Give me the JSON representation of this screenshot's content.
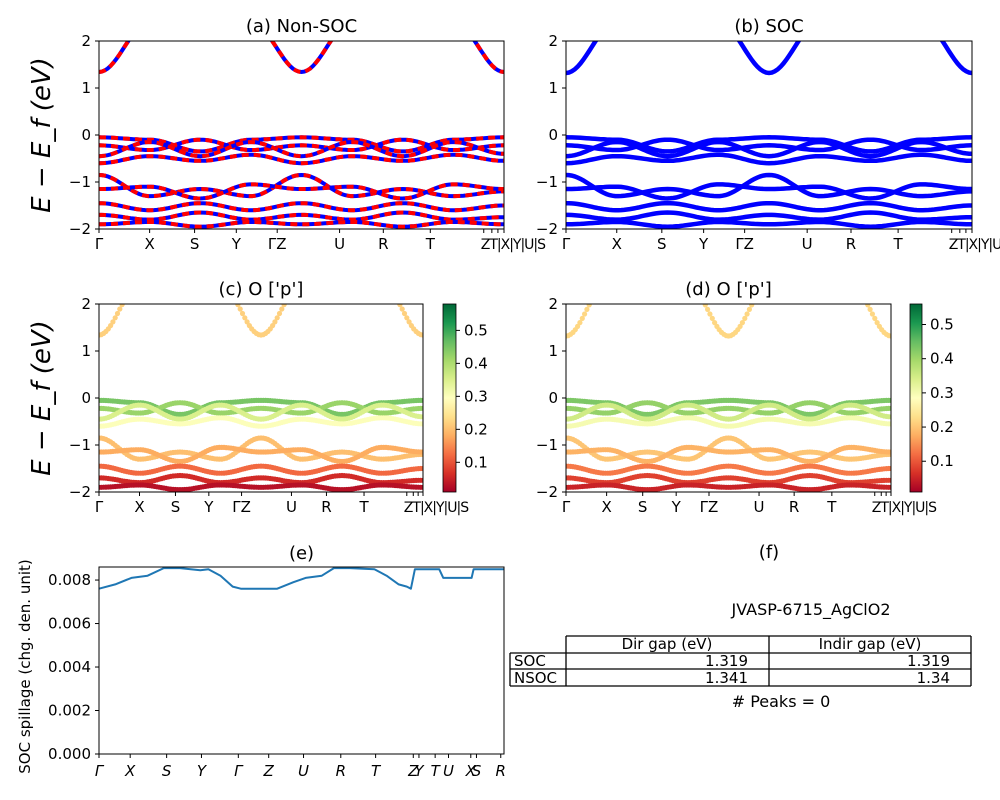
{
  "colors": {
    "nonsoc_band_a": "#ff0000",
    "nonsoc_band_b": "#0000ff",
    "soc_band": "#0000ff",
    "spillage_line": "#1f77b4",
    "colormap": [
      "#a50026",
      "#d73027",
      "#f46d43",
      "#fdae61",
      "#fee08b",
      "#ffffbf",
      "#d9ef8b",
      "#a6d96a",
      "#66bd63",
      "#1a9850",
      "#006837"
    ]
  },
  "chart_data": [
    {
      "panel": "a",
      "type": "line",
      "title": "(a) Non-SOC",
      "ylabel": "E − E_f (eV)",
      "ylim": [
        -2,
        2
      ],
      "yticks": [
        "2",
        "1",
        "0",
        "−1",
        "−2"
      ],
      "xticks": [
        "Γ",
        "X",
        "S",
        "Y",
        "ΓZ",
        "U",
        "R",
        "T",
        "ZT|X|Y|U|S"
      ],
      "xtick_positions": [
        0,
        0.125,
        0.236,
        0.339,
        0.44,
        0.594,
        0.702,
        0.818,
        0.95,
        0.97,
        0.985,
        1.0
      ],
      "series": [
        {
          "values": [
            1.34,
            2.4,
            2.4,
            2.4,
            1.34,
            2.4,
            2.4,
            2.4,
            1.34
          ]
        },
        {
          "values": [
            -0.05,
            -0.1,
            -0.35,
            -0.1,
            -0.05,
            -0.1,
            -0.35,
            -0.1,
            -0.05
          ]
        },
        {
          "values": [
            -0.22,
            -0.32,
            -0.1,
            -0.32,
            -0.22,
            -0.32,
            -0.1,
            -0.32,
            -0.22
          ]
        },
        {
          "values": [
            -0.45,
            -0.15,
            -0.45,
            -0.15,
            -0.45,
            -0.15,
            -0.45,
            -0.15,
            -0.4
          ]
        },
        {
          "values": [
            -0.6,
            -0.45,
            -0.55,
            -0.42,
            -0.6,
            -0.45,
            -0.55,
            -0.42,
            -0.55
          ]
        },
        {
          "values": [
            -0.85,
            -1.3,
            -1.15,
            -1.3,
            -0.85,
            -1.3,
            -1.15,
            -1.3,
            -1.2
          ]
        },
        {
          "values": [
            -1.15,
            -1.1,
            -1.35,
            -1.05,
            -1.15,
            -1.1,
            -1.35,
            -1.05,
            -1.15
          ]
        },
        {
          "values": [
            -1.45,
            -1.6,
            -1.45,
            -1.6,
            -1.45,
            -1.6,
            -1.45,
            -1.6,
            -1.5
          ]
        },
        {
          "values": [
            -1.7,
            -1.8,
            -1.65,
            -1.8,
            -1.7,
            -1.8,
            -1.65,
            -1.8,
            -1.75
          ]
        },
        {
          "values": [
            -1.9,
            -1.85,
            -1.95,
            -1.85,
            -1.9,
            -1.85,
            -1.95,
            -1.85,
            -1.9
          ]
        }
      ]
    },
    {
      "panel": "b",
      "type": "line",
      "title": "(b) SOC",
      "ylabel": "",
      "ylim": [
        -2,
        2
      ],
      "yticks": [
        "2",
        "1",
        "0",
        "−1",
        "−2"
      ],
      "xticks": [
        "Γ",
        "X",
        "S",
        "Y",
        "ΓZ",
        "U",
        "R",
        "T",
        "ZT|X|Y|U|S"
      ],
      "xtick_positions": [
        0,
        0.125,
        0.236,
        0.339,
        0.44,
        0.594,
        0.702,
        0.818,
        0.95,
        0.97,
        0.985,
        1.0
      ],
      "series": [
        {
          "values": [
            1.32,
            2.4,
            2.4,
            2.4,
            1.32,
            2.4,
            2.4,
            2.4,
            1.32
          ]
        },
        {
          "values": [
            -0.05,
            -0.1,
            -0.35,
            -0.1,
            -0.05,
            -0.1,
            -0.35,
            -0.1,
            -0.05
          ]
        },
        {
          "values": [
            -0.22,
            -0.32,
            -0.1,
            -0.32,
            -0.22,
            -0.32,
            -0.1,
            -0.32,
            -0.22
          ]
        },
        {
          "values": [
            -0.45,
            -0.15,
            -0.45,
            -0.15,
            -0.45,
            -0.15,
            -0.45,
            -0.15,
            -0.4
          ]
        },
        {
          "values": [
            -0.6,
            -0.45,
            -0.55,
            -0.42,
            -0.6,
            -0.45,
            -0.55,
            -0.42,
            -0.55
          ]
        },
        {
          "values": [
            -0.85,
            -1.3,
            -1.15,
            -1.3,
            -0.85,
            -1.3,
            -1.15,
            -1.3,
            -1.2
          ]
        },
        {
          "values": [
            -1.15,
            -1.1,
            -1.35,
            -1.05,
            -1.15,
            -1.1,
            -1.35,
            -1.05,
            -1.15
          ]
        },
        {
          "values": [
            -1.45,
            -1.6,
            -1.45,
            -1.6,
            -1.45,
            -1.6,
            -1.45,
            -1.6,
            -1.5
          ]
        },
        {
          "values": [
            -1.7,
            -1.8,
            -1.65,
            -1.8,
            -1.7,
            -1.8,
            -1.65,
            -1.8,
            -1.75
          ]
        },
        {
          "values": [
            -1.9,
            -1.85,
            -1.95,
            -1.85,
            -1.9,
            -1.85,
            -1.95,
            -1.85,
            -1.9
          ]
        }
      ]
    },
    {
      "panel": "c",
      "type": "scatter",
      "title": "(c)  O ['p']",
      "ylabel": "E − E_f (eV)",
      "ylim": [
        -2,
        2
      ],
      "yticks": [
        "2",
        "1",
        "0",
        "−1",
        "−2"
      ],
      "xticks": [
        "Γ",
        "X",
        "S",
        "Y",
        "ΓZ",
        "U",
        "R",
        "T",
        "ZT|X|Y|U|S"
      ],
      "xtick_positions": [
        0,
        0.125,
        0.236,
        0.339,
        0.44,
        0.594,
        0.702,
        0.818,
        0.95,
        0.97,
        0.985,
        1.0
      ],
      "colorbar": {
        "range": [
          0.01,
          0.58
        ],
        "ticks": [
          "0.5",
          "0.4",
          "0.3",
          "0.2",
          "0.1"
        ],
        "tick_values": [
          0.5,
          0.4,
          0.3,
          0.2,
          0.1
        ]
      },
      "band_weights": [
        0.22,
        0.45,
        0.42,
        0.35,
        0.3,
        0.2,
        0.18,
        0.12,
        0.06,
        0.03
      ],
      "series": [
        {
          "values": [
            1.34,
            2.4,
            2.4,
            2.4,
            1.34,
            2.4,
            2.4,
            2.4,
            1.34
          ]
        },
        {
          "values": [
            -0.05,
            -0.1,
            -0.35,
            -0.1,
            -0.05,
            -0.1,
            -0.35,
            -0.1,
            -0.05
          ]
        },
        {
          "values": [
            -0.22,
            -0.32,
            -0.1,
            -0.32,
            -0.22,
            -0.32,
            -0.1,
            -0.32,
            -0.22
          ]
        },
        {
          "values": [
            -0.45,
            -0.15,
            -0.45,
            -0.15,
            -0.45,
            -0.15,
            -0.45,
            -0.15,
            -0.4
          ]
        },
        {
          "values": [
            -0.6,
            -0.45,
            -0.55,
            -0.42,
            -0.6,
            -0.45,
            -0.55,
            -0.42,
            -0.55
          ]
        },
        {
          "values": [
            -0.85,
            -1.3,
            -1.15,
            -1.3,
            -0.85,
            -1.3,
            -1.15,
            -1.3,
            -1.2
          ]
        },
        {
          "values": [
            -1.15,
            -1.1,
            -1.35,
            -1.05,
            -1.15,
            -1.1,
            -1.35,
            -1.05,
            -1.15
          ]
        },
        {
          "values": [
            -1.45,
            -1.6,
            -1.45,
            -1.6,
            -1.45,
            -1.6,
            -1.45,
            -1.6,
            -1.5
          ]
        },
        {
          "values": [
            -1.7,
            -1.8,
            -1.65,
            -1.8,
            -1.7,
            -1.8,
            -1.65,
            -1.8,
            -1.75
          ]
        },
        {
          "values": [
            -1.9,
            -1.85,
            -1.95,
            -1.85,
            -1.9,
            -1.85,
            -1.95,
            -1.85,
            -1.9
          ]
        }
      ]
    },
    {
      "panel": "d",
      "type": "scatter",
      "title": "(d) O ['p']",
      "ylabel": "",
      "ylim": [
        -2,
        2
      ],
      "yticks": [
        "2",
        "1",
        "0",
        "−1",
        "−2"
      ],
      "xticks": [
        "Γ",
        "X",
        "S",
        "Y",
        "ΓZ",
        "U",
        "R",
        "T",
        "ZT|X|Y|U|S"
      ],
      "xtick_positions": [
        0,
        0.125,
        0.236,
        0.339,
        0.44,
        0.594,
        0.702,
        0.818,
        0.95,
        0.97,
        0.985,
        1.0
      ],
      "colorbar": {
        "range": [
          0.01,
          0.56
        ],
        "ticks": [
          "0.5",
          "0.4",
          "0.3",
          "0.2",
          "0.1"
        ],
        "tick_values": [
          0.5,
          0.4,
          0.3,
          0.2,
          0.1
        ]
      },
      "band_weights": [
        0.22,
        0.43,
        0.41,
        0.35,
        0.3,
        0.2,
        0.18,
        0.13,
        0.08,
        0.05
      ],
      "series": [
        {
          "values": [
            1.32,
            2.4,
            2.4,
            2.4,
            1.32,
            2.4,
            2.4,
            2.4,
            1.32
          ]
        },
        {
          "values": [
            -0.05,
            -0.1,
            -0.35,
            -0.1,
            -0.05,
            -0.1,
            -0.35,
            -0.1,
            -0.05
          ]
        },
        {
          "values": [
            -0.22,
            -0.32,
            -0.1,
            -0.32,
            -0.22,
            -0.32,
            -0.1,
            -0.32,
            -0.22
          ]
        },
        {
          "values": [
            -0.45,
            -0.15,
            -0.45,
            -0.15,
            -0.45,
            -0.15,
            -0.45,
            -0.15,
            -0.4
          ]
        },
        {
          "values": [
            -0.6,
            -0.45,
            -0.55,
            -0.42,
            -0.6,
            -0.45,
            -0.55,
            -0.42,
            -0.55
          ]
        },
        {
          "values": [
            -0.85,
            -1.3,
            -1.15,
            -1.3,
            -0.85,
            -1.3,
            -1.15,
            -1.3,
            -1.2
          ]
        },
        {
          "values": [
            -1.15,
            -1.1,
            -1.35,
            -1.05,
            -1.15,
            -1.1,
            -1.35,
            -1.05,
            -1.15
          ]
        },
        {
          "values": [
            -1.45,
            -1.6,
            -1.45,
            -1.6,
            -1.45,
            -1.6,
            -1.45,
            -1.6,
            -1.5
          ]
        },
        {
          "values": [
            -1.7,
            -1.8,
            -1.65,
            -1.8,
            -1.7,
            -1.8,
            -1.65,
            -1.8,
            -1.75
          ]
        },
        {
          "values": [
            -1.9,
            -1.85,
            -1.95,
            -1.85,
            -1.9,
            -1.85,
            -1.95,
            -1.85,
            -1.9
          ]
        }
      ]
    },
    {
      "panel": "e",
      "type": "line",
      "title": "(e)",
      "ylabel": "SOC spillage (chg. den. unit)",
      "ylim": [
        0,
        0.0086
      ],
      "yticks": [
        "0.008",
        "0.006",
        "0.004",
        "0.002",
        "0.000"
      ],
      "ytick_values": [
        0.008,
        0.006,
        0.004,
        0.002,
        0.0
      ],
      "xticks": [
        "Γ",
        "X",
        "S",
        "Y",
        "Γ",
        "Z",
        "U",
        "R",
        "T",
        "Z",
        "Y",
        "T",
        "U",
        "X",
        "S",
        "R"
      ],
      "xtick_positions": [
        0,
        0.077,
        0.167,
        0.253,
        0.344,
        0.419,
        0.505,
        0.597,
        0.683,
        0.776,
        0.79,
        0.83,
        0.863,
        0.918,
        0.932,
        0.992
      ],
      "x": [
        0,
        0.04,
        0.08,
        0.12,
        0.16,
        0.2,
        0.25,
        0.27,
        0.3,
        0.33,
        0.35,
        0.42,
        0.44,
        0.48,
        0.51,
        0.55,
        0.58,
        0.62,
        0.68,
        0.71,
        0.74,
        0.76,
        0.77,
        0.78,
        0.79,
        0.84,
        0.85,
        0.86,
        0.92,
        0.925,
        1.0
      ],
      "values": [
        0.0076,
        0.0078,
        0.0081,
        0.0082,
        0.00855,
        0.00855,
        0.00845,
        0.0085,
        0.0082,
        0.0077,
        0.0076,
        0.0076,
        0.0076,
        0.0079,
        0.0081,
        0.0082,
        0.00855,
        0.00855,
        0.0085,
        0.0082,
        0.0078,
        0.0077,
        0.0076,
        0.0085,
        0.0085,
        0.0085,
        0.0081,
        0.0081,
        0.0081,
        0.0085,
        0.0085
      ]
    }
  ],
  "panel_f": {
    "title": "(f)",
    "jid": "JVASP-6715_AgClO2",
    "headers": [
      "Dir gap (eV)",
      "Indir gap (eV)"
    ],
    "rows": [
      {
        "label": "SOC",
        "dir": "1.319",
        "indir": "1.319"
      },
      {
        "label": "NSOC",
        "dir": "1.341",
        "indir": "1.34"
      }
    ],
    "peaks": "# Peaks = 0"
  }
}
